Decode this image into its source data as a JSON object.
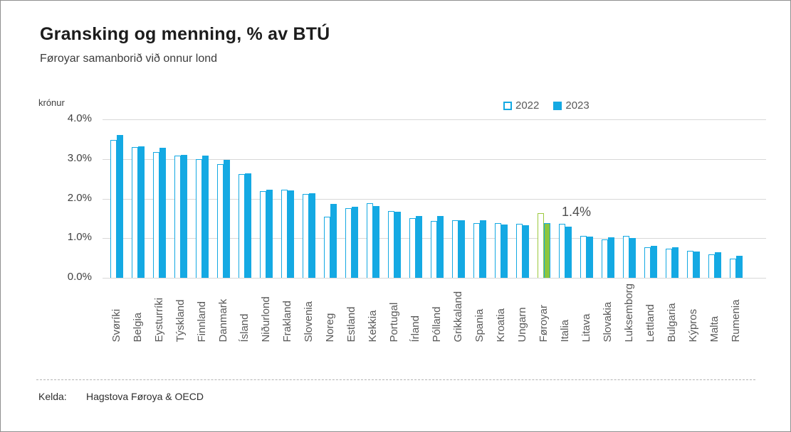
{
  "page": {
    "title": "Gransking og menning, % av BTÚ",
    "subtitle": "Føroyar samanborið við onnur lond",
    "unit_label": "krónur",
    "source_label": "Kelda:",
    "source_value": "Hagstova Føroya & OECD"
  },
  "legend": [
    {
      "label": "2022",
      "style": "outline"
    },
    {
      "label": "2023",
      "style": "solid"
    }
  ],
  "colors": {
    "blue": "#14a9e3",
    "green": "#8cc63f",
    "green_outline": "#9cc93d",
    "grid": "#d8d8d8"
  },
  "annotation": {
    "text": "1.4%",
    "country": "Føroyar"
  },
  "chart_data": {
    "type": "bar",
    "title": "Gransking og menning, % av BTÚ",
    "subtitle": "Føroyar samanborið við onnur lond",
    "ylabel": "krónur",
    "ylim": [
      0,
      4.0
    ],
    "ytick_values": [
      4.0,
      3.0,
      2.0,
      1.0,
      0.0
    ],
    "ytick_labels": [
      "4.0%",
      "3.0%",
      "2.0%",
      "1.0%",
      "0.0%"
    ],
    "grid": true,
    "legend_position": "top-right",
    "highlight_category": "Føroyar",
    "highlight_annotation": "1.4%",
    "categories": [
      "Svøríki",
      "Belgia",
      "Eysturríki",
      "Týskland",
      "Finnland",
      "Danmark",
      "Ísland",
      "Niðurlond",
      "Frakland",
      "Slovenia",
      "Noreg",
      "Estland",
      "Kekkia",
      "Portugal",
      "Írland",
      "Pólland",
      "Grikkaland",
      "Spania",
      "Kroatia",
      "Ungarn",
      "Føroyar",
      "Italia",
      "Litava",
      "Slovakia",
      "Luksemborg",
      "Lettland",
      "Bulgaria",
      "Kýpros",
      "Malta",
      "Rumenia"
    ],
    "series": [
      {
        "name": "2022",
        "values": [
          3.48,
          3.3,
          3.18,
          3.08,
          3.0,
          2.87,
          2.62,
          2.18,
          2.23,
          2.12,
          1.55,
          1.75,
          1.88,
          1.68,
          1.51,
          1.43,
          1.46,
          1.38,
          1.38,
          1.36,
          1.63,
          1.36,
          1.05,
          0.97,
          1.06,
          0.78,
          0.73,
          0.69,
          0.59,
          0.48
        ]
      },
      {
        "name": "2023",
        "values": [
          3.6,
          3.32,
          3.28,
          3.1,
          3.09,
          2.98,
          2.64,
          2.22,
          2.2,
          2.14,
          1.86,
          1.8,
          1.81,
          1.66,
          1.56,
          1.56,
          1.45,
          1.45,
          1.35,
          1.33,
          1.38,
          1.3,
          1.04,
          1.03,
          1.0,
          0.81,
          0.77,
          0.67,
          0.65,
          0.55
        ]
      }
    ]
  }
}
